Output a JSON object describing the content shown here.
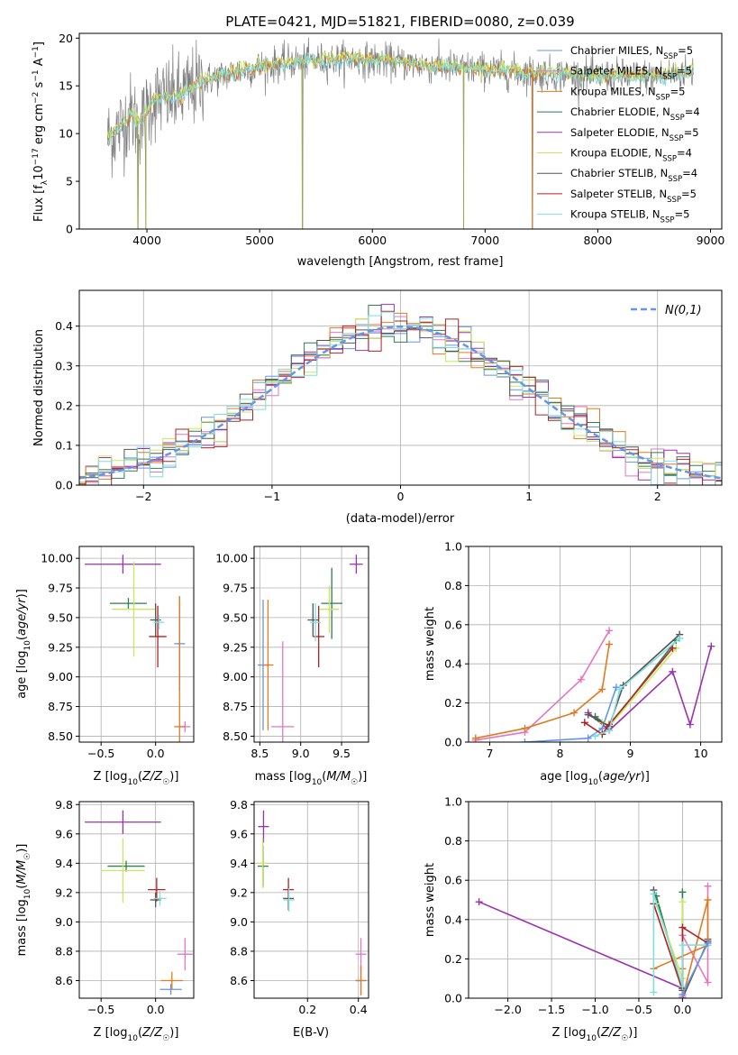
{
  "figure_title": "PLATE=0421, MJD=51821, FIBERID=0080, z=0.039",
  "colors": {
    "chabrier_miles": "#6495ed",
    "salpeter_miles": "#e377c2",
    "kroupa_miles": "#e07b20",
    "chabrier_elodie": "#2f7f4f",
    "salpeter_elodie": "#9a32b0",
    "kroupa_elodie": "#c8e860",
    "chabrier_stelib": "#555555",
    "salpeter_stelib": "#b22222",
    "kroupa_stelib": "#7fdfe0",
    "grid": "#b0b0b0",
    "normal_curve": "#6495ed"
  },
  "chart_data": [
    {
      "id": "spectrum",
      "type": "line",
      "xlabel": "wavelength [Angstrom, rest frame]",
      "ylabel": "Flux [f_λ 10^-17 erg cm^-2 s^-1 A^-1]",
      "xlim": [
        3400,
        9100
      ],
      "ylim": [
        0,
        20.5
      ],
      "xticks": [
        4000,
        5000,
        6000,
        7000,
        8000,
        9000
      ],
      "yticks": [
        0,
        5,
        10,
        15,
        20
      ],
      "grid": false,
      "legend_placement": "top-right",
      "legend": [
        {
          "label": "Chabrier MILES, N",
          "sub": "SSP",
          "tail": "=5",
          "color_key": "chabrier_miles"
        },
        {
          "label": "Salpeter MILES, N",
          "sub": "SSP",
          "tail": "=5",
          "color_key": "salpeter_miles"
        },
        {
          "label": "Kroupa MILES, N",
          "sub": "SSP",
          "tail": "=5",
          "color_key": "kroupa_miles"
        },
        {
          "label": "Chabrier ELODIE, N",
          "sub": "SSP",
          "tail": "=4",
          "color_key": "chabrier_elodie"
        },
        {
          "label": "Salpeter ELODIE, N",
          "sub": "SSP",
          "tail": "=5",
          "color_key": "salpeter_elodie"
        },
        {
          "label": "Kroupa ELODIE, N",
          "sub": "SSP",
          "tail": "=4",
          "color_key": "kroupa_elodie"
        },
        {
          "label": "Chabrier STELIB, N",
          "sub": "SSP",
          "tail": "=4",
          "color_key": "chabrier_stelib"
        },
        {
          "label": "Salpeter STELIB, N",
          "sub": "SSP",
          "tail": "=5",
          "color_key": "salpeter_stelib"
        },
        {
          "label": "Kroupa STELIB, N",
          "sub": "SSP",
          "tail": "=5",
          "color_key": "kroupa_stelib"
        }
      ],
      "continuum_anchors": [
        [
          3650,
          9.5
        ],
        [
          3750,
          10.5
        ],
        [
          3850,
          12.0
        ],
        [
          3950,
          11.0
        ],
        [
          4050,
          13.5
        ],
        [
          4300,
          14.0
        ],
        [
          4500,
          15.5
        ],
        [
          4800,
          16.5
        ],
        [
          5000,
          17.0
        ],
        [
          5300,
          17.5
        ],
        [
          5800,
          17.8
        ],
        [
          6200,
          17.5
        ],
        [
          6600,
          17.0
        ],
        [
          7000,
          16.7
        ],
        [
          7500,
          16.3
        ],
        [
          8000,
          16.0
        ],
        [
          8500,
          16.0
        ],
        [
          8850,
          16.5
        ]
      ],
      "dropouts": [
        [
          3920,
          0
        ],
        [
          3990,
          0
        ],
        [
          5380,
          0
        ],
        [
          6810,
          0
        ],
        [
          7420,
          0
        ]
      ]
    },
    {
      "id": "residuals",
      "type": "histogram",
      "xlabel": "(data-model)/error",
      "ylabel": "Normed distribution",
      "xlim": [
        -2.5,
        2.5
      ],
      "ylim": [
        0,
        0.49
      ],
      "xticks": [
        -2,
        -1,
        0,
        1,
        2
      ],
      "yticks": [
        0.0,
        0.1,
        0.2,
        0.3,
        0.4
      ],
      "grid": true,
      "bin_width": 0.1,
      "legend_placement": "top-right",
      "reference_curve": {
        "label": "N(0,1)",
        "mean": 0,
        "sigma": 1,
        "style": "dashed"
      }
    },
    {
      "id": "age_vs_Z",
      "type": "errorbar",
      "xlabel": "Z [log10(Z/Z☉)]",
      "ylabel": "age  [log10(age/yr)]",
      "xlim": [
        -0.7,
        0.35
      ],
      "ylim": [
        8.45,
        10.1
      ],
      "xticks": [
        -0.5,
        0.0
      ],
      "yticks": [
        8.5,
        8.75,
        9.0,
        9.25,
        9.5,
        9.75,
        10.0
      ],
      "grid": true,
      "points": [
        {
          "c": "chabrier_miles",
          "x": 0.22,
          "y": 9.28,
          "xerr": 0.0,
          "yerr": 0.4
        },
        {
          "c": "salpeter_miles",
          "x": 0.27,
          "y": 8.58,
          "xerr": 0.0,
          "yerr": 0.0
        },
        {
          "c": "kroupa_miles",
          "x": 0.22,
          "y": 8.58,
          "xerr": 0.05,
          "yerr": 1.1
        },
        {
          "c": "chabrier_elodie",
          "x": -0.25,
          "y": 9.62,
          "xerr": 0.17,
          "yerr": 0.0
        },
        {
          "c": "salpeter_elodie",
          "x": -0.3,
          "y": 9.95,
          "xerr": 0.35,
          "yerr": 0.08
        },
        {
          "c": "kroupa_elodie",
          "x": -0.2,
          "y": 9.57,
          "xerr": 0.2,
          "yerr": 0.4
        },
        {
          "c": "chabrier_stelib",
          "x": 0.0,
          "y": 9.48,
          "xerr": 0.05,
          "yerr": 0.14
        },
        {
          "c": "salpeter_stelib",
          "x": 0.02,
          "y": 9.34,
          "xerr": 0.08,
          "yerr": 0.26
        },
        {
          "c": "kroupa_stelib",
          "x": 0.03,
          "y": 9.46,
          "xerr": 0.04,
          "yerr": 0.06
        }
      ]
    },
    {
      "id": "age_vs_mass",
      "type": "errorbar",
      "xlabel": "mass [log10(M/M☉)]",
      "ylabel": "",
      "xlim": [
        8.43,
        9.83
      ],
      "ylim": [
        8.45,
        10.1
      ],
      "xticks": [
        8.5,
        9.0,
        9.5
      ],
      "yticks": [
        8.5,
        8.75,
        9.0,
        9.25,
        9.5,
        9.75,
        10.0
      ],
      "grid": true,
      "points": [
        {
          "c": "chabrier_miles",
          "x": 8.54,
          "y": 9.1,
          "xerr": 0.0,
          "yerr": 0.55
        },
        {
          "c": "salpeter_miles",
          "x": 8.78,
          "y": 8.58,
          "xerr": 0.14,
          "yerr": 0.72
        },
        {
          "c": "kroupa_miles",
          "x": 8.6,
          "y": 9.1,
          "xerr": 0.06,
          "yerr": 0.55
        },
        {
          "c": "chabrier_elodie",
          "x": 9.38,
          "y": 9.62,
          "xerr": 0.13,
          "yerr": 0.3
        },
        {
          "c": "salpeter_elodie",
          "x": 9.68,
          "y": 9.95,
          "xerr": 0.08,
          "yerr": 0.08
        },
        {
          "c": "kroupa_elodie",
          "x": 9.35,
          "y": 9.57,
          "xerr": 0.12,
          "yerr": 0.2
        },
        {
          "c": "chabrier_stelib",
          "x": 9.15,
          "y": 9.48,
          "xerr": 0.05,
          "yerr": 0.14
        },
        {
          "c": "salpeter_stelib",
          "x": 9.22,
          "y": 9.34,
          "xerr": 0.07,
          "yerr": 0.26
        },
        {
          "c": "kroupa_stelib",
          "x": 9.18,
          "y": 9.46,
          "xerr": 0.04,
          "yerr": 0.16
        }
      ]
    },
    {
      "id": "weight_vs_age",
      "type": "line",
      "xlabel": "age  [log10(age/yr)]",
      "ylabel": "mass weight",
      "xlim": [
        6.7,
        10.3
      ],
      "ylim": [
        0,
        1.0
      ],
      "xticks": [
        7,
        8,
        9,
        10
      ],
      "yticks": [
        0.0,
        0.2,
        0.4,
        0.6,
        0.8,
        1.0
      ],
      "grid": true,
      "series": [
        {
          "c": "salpeter_miles",
          "x": [
            6.8,
            7.5,
            8.3,
            8.7
          ],
          "y": [
            0.01,
            0.05,
            0.32,
            0.57
          ]
        },
        {
          "c": "kroupa_miles",
          "x": [
            6.8,
            7.5,
            8.2,
            8.6,
            8.7
          ],
          "y": [
            0.02,
            0.07,
            0.15,
            0.27,
            0.5
          ]
        },
        {
          "c": "chabrier_miles",
          "x": [
            7.5,
            8.4,
            8.6,
            8.8
          ],
          "y": [
            0.0,
            0.02,
            0.07,
            0.28
          ]
        },
        {
          "c": "chabrier_elodie",
          "x": [
            8.5,
            8.7,
            9.65
          ],
          "y": [
            0.13,
            0.08,
            0.52
          ]
        },
        {
          "c": "salpeter_elodie",
          "x": [
            8.4,
            8.7,
            9.6,
            9.85,
            10.15
          ],
          "y": [
            0.15,
            0.06,
            0.36,
            0.09,
            0.49
          ]
        },
        {
          "c": "kroupa_elodie",
          "x": [
            8.6,
            8.7,
            9.65
          ],
          "y": [
            0.1,
            0.08,
            0.48
          ]
        },
        {
          "c": "chabrier_stelib",
          "x": [
            8.4,
            8.7,
            8.9,
            9.7
          ],
          "y": [
            0.14,
            0.08,
            0.29,
            0.55
          ]
        },
        {
          "c": "salpeter_stelib",
          "x": [
            8.35,
            8.6,
            8.7,
            9.6
          ],
          "y": [
            0.1,
            0.04,
            0.09,
            0.48
          ]
        },
        {
          "c": "kroupa_stelib",
          "x": [
            8.5,
            8.7,
            8.85,
            9.7
          ],
          "y": [
            0.03,
            0.06,
            0.27,
            0.53
          ]
        }
      ]
    },
    {
      "id": "mass_vs_Z",
      "type": "errorbar",
      "xlabel": "Z [log10(Z/Z☉)]",
      "ylabel": "mass [log10(M/M☉)]",
      "xlim": [
        -0.7,
        0.35
      ],
      "ylim": [
        8.48,
        9.82
      ],
      "xticks": [
        -0.5,
        0.0
      ],
      "yticks": [
        8.6,
        8.8,
        9.0,
        9.2,
        9.4,
        9.6,
        9.8
      ],
      "grid": true,
      "points": [
        {
          "c": "chabrier_miles",
          "x": 0.14,
          "y": 8.54,
          "xerr": 0.1,
          "yerr": 0.0
        },
        {
          "c": "salpeter_miles",
          "x": 0.27,
          "y": 8.78,
          "xerr": 0.07,
          "yerr": 0.11
        },
        {
          "c": "kroupa_miles",
          "x": 0.15,
          "y": 8.6,
          "xerr": 0.1,
          "yerr": 0.06
        },
        {
          "c": "chabrier_elodie",
          "x": -0.27,
          "y": 9.38,
          "xerr": 0.17,
          "yerr": 0.0
        },
        {
          "c": "salpeter_elodie",
          "x": -0.3,
          "y": 9.68,
          "xerr": 0.35,
          "yerr": 0.08
        },
        {
          "c": "kroupa_elodie",
          "x": -0.3,
          "y": 9.35,
          "xerr": 0.2,
          "yerr": 0.22
        },
        {
          "c": "chabrier_stelib",
          "x": 0.0,
          "y": 9.15,
          "xerr": 0.05,
          "yerr": 0.05
        },
        {
          "c": "salpeter_stelib",
          "x": 0.01,
          "y": 9.22,
          "xerr": 0.08,
          "yerr": 0.08
        },
        {
          "c": "kroupa_stelib",
          "x": 0.04,
          "y": 9.16,
          "xerr": 0.06,
          "yerr": 0.05
        }
      ]
    },
    {
      "id": "mass_vs_ebv",
      "type": "errorbar",
      "xlabel": "E(B-V)",
      "ylabel": "",
      "xlim": [
        -0.01,
        0.44
      ],
      "ylim": [
        8.48,
        9.82
      ],
      "xticks": [
        0.2,
        0.4
      ],
      "yticks": [
        8.6,
        8.8,
        9.0,
        9.2,
        9.4,
        9.6,
        9.8
      ],
      "grid": true,
      "points": [
        {
          "c": "chabrier_miles",
          "x": 0.41,
          "y": 8.6,
          "xerr": 0.0,
          "yerr": 0.1
        },
        {
          "c": "salpeter_miles",
          "x": 0.41,
          "y": 8.78,
          "xerr": 0.0,
          "yerr": 0.11
        },
        {
          "c": "kroupa_miles",
          "x": 0.41,
          "y": 8.6,
          "xerr": 0.0,
          "yerr": 0.1
        },
        {
          "c": "chabrier_elodie",
          "x": 0.025,
          "y": 9.38,
          "xerr": 0.0,
          "yerr": 0.14
        },
        {
          "c": "salpeter_elodie",
          "x": 0.027,
          "y": 9.65,
          "xerr": 0.0,
          "yerr": 0.11
        },
        {
          "c": "kroupa_elodie",
          "x": 0.024,
          "y": 9.4,
          "xerr": 0.0,
          "yerr": 0.17
        },
        {
          "c": "chabrier_stelib",
          "x": 0.125,
          "y": 9.16,
          "xerr": 0.0,
          "yerr": 0.08
        },
        {
          "c": "salpeter_stelib",
          "x": 0.125,
          "y": 9.22,
          "xerr": 0.0,
          "yerr": 0.08
        },
        {
          "c": "kroupa_stelib",
          "x": 0.127,
          "y": 9.15,
          "xerr": 0.0,
          "yerr": 0.08
        }
      ]
    },
    {
      "id": "weight_vs_Z",
      "type": "line",
      "xlabel": "Z [log10(Z/Z☉)]",
      "ylabel": "mass weight",
      "xlim": [
        -2.45,
        0.45
      ],
      "ylim": [
        0,
        1.0
      ],
      "xticks": [
        -2.0,
        -1.5,
        -1.0,
        -0.5,
        0.0
      ],
      "yticks": [
        0.0,
        0.2,
        0.4,
        0.6,
        0.8,
        1.0
      ],
      "grid": true,
      "series": [
        {
          "c": "salpeter_elodie",
          "x": [
            -2.33,
            0.0
          ],
          "y": [
            0.49,
            0.05
          ]
        },
        {
          "c": "chabrier_stelib",
          "x": [
            -0.33,
            0.0,
            0.0,
            0.29,
            0.29
          ],
          "y": [
            0.55,
            0.05,
            0.0,
            0.29,
            0.3
          ]
        },
        {
          "c": "salpeter_miles",
          "x": [
            0.29,
            0.29,
            0.0,
            0.0
          ],
          "y": [
            0.57,
            0.08,
            0.32,
            0.01
          ]
        },
        {
          "c": "kroupa_miles",
          "x": [
            0.0,
            0.0,
            0.29,
            0.29,
            -0.33
          ],
          "y": [
            0.15,
            0.0,
            0.5,
            0.27,
            0.15
          ]
        },
        {
          "c": "chabrier_elodie",
          "x": [
            -0.3,
            0.0,
            0.0
          ],
          "y": [
            0.52,
            0.05,
            0.54
          ]
        },
        {
          "c": "kroupa_elodie",
          "x": [
            -0.3,
            0.0,
            0.0
          ],
          "y": [
            0.48,
            0.1,
            0.49
          ]
        },
        {
          "c": "salpeter_stelib",
          "x": [
            -0.33,
            0.0,
            0.0,
            0.29
          ],
          "y": [
            0.48,
            0.04,
            0.36,
            0.28
          ]
        },
        {
          "c": "kroupa_stelib",
          "x": [
            -0.33,
            -0.33,
            0.0,
            0.0,
            0.29
          ],
          "y": [
            0.03,
            0.53,
            0.06,
            0.27,
            0.27
          ]
        },
        {
          "c": "chabrier_miles",
          "x": [
            0.0,
            0.0,
            0.29
          ],
          "y": [
            0.0,
            0.02,
            0.28
          ]
        }
      ]
    }
  ]
}
